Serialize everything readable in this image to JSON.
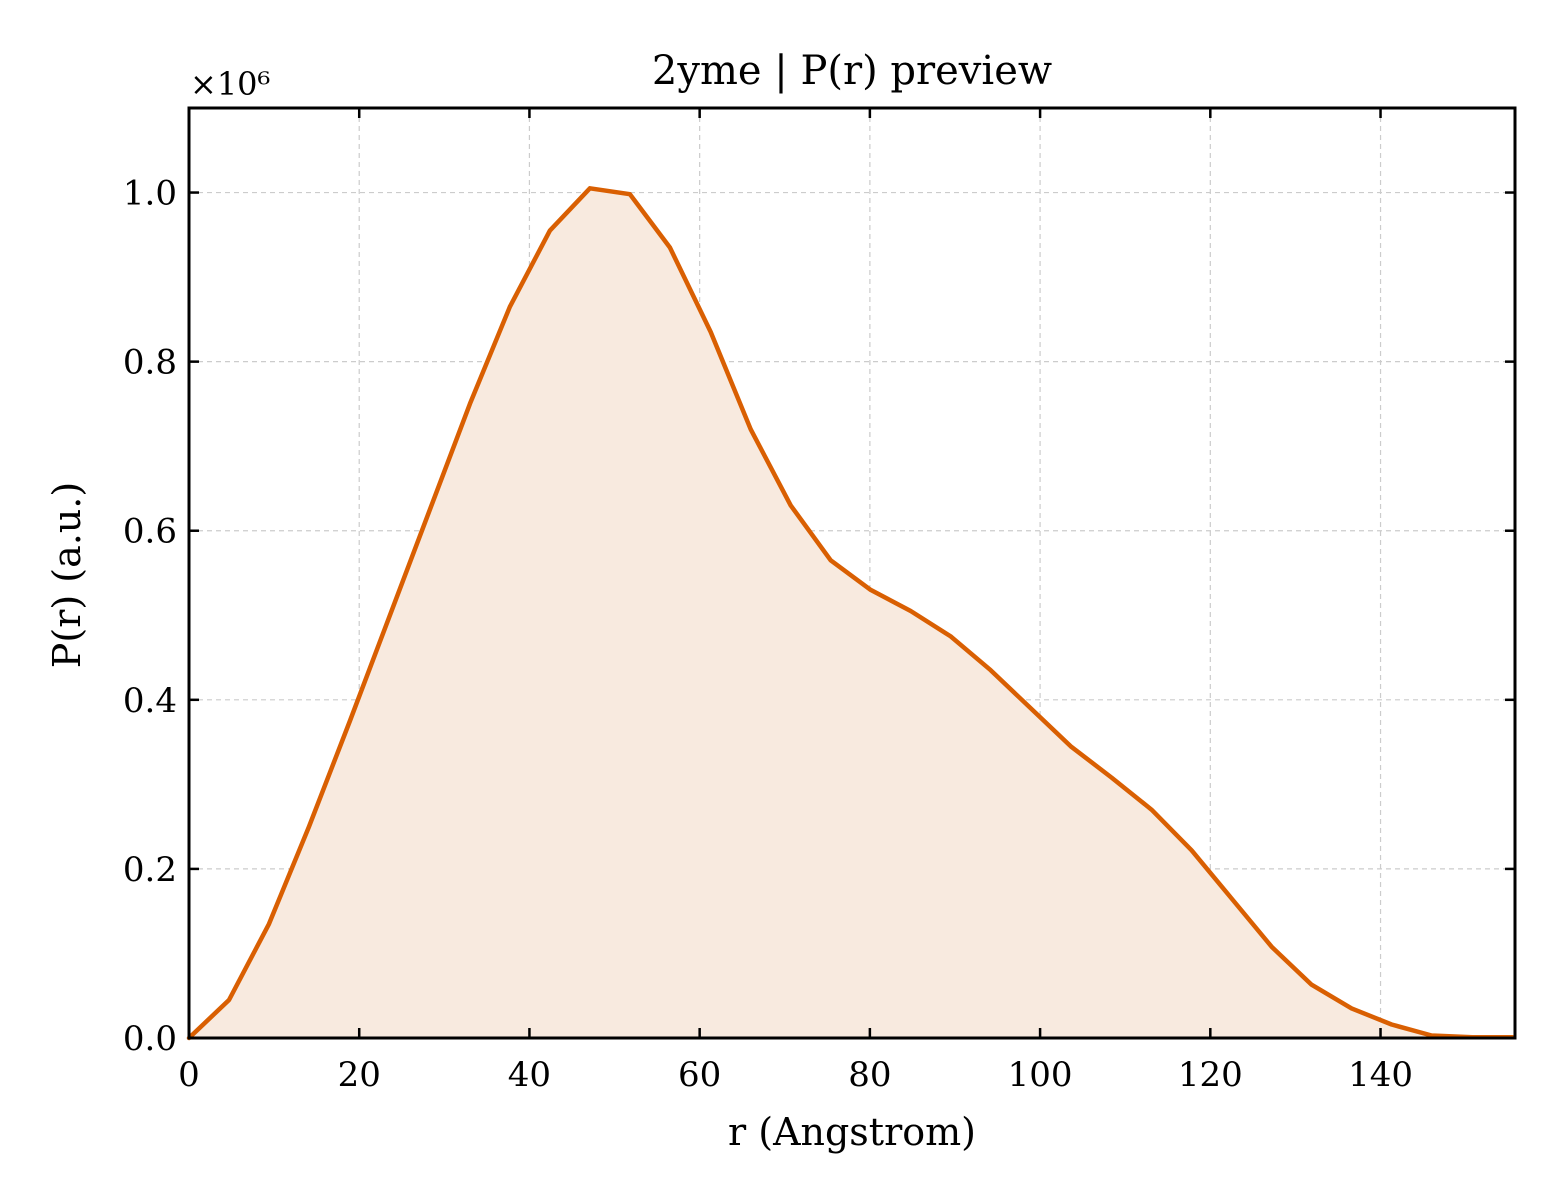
{
  "chart_data": {
    "type": "area",
    "title": "2yme | P(r) preview",
    "xlabel": "r (Angstrom)",
    "ylabel": "P(r) (a.u.)",
    "y_offset_label": "×10⁶",
    "xlim": [
      0,
      155.8
    ],
    "ylim": [
      0,
      1.1
    ],
    "x_ticks": [
      0,
      20,
      40,
      60,
      80,
      100,
      120,
      140
    ],
    "x_tick_labels": [
      "0",
      "20",
      "40",
      "60",
      "80",
      "100",
      "120",
      "140"
    ],
    "y_ticks": [
      0,
      0.2,
      0.4,
      0.6,
      0.8,
      1.0
    ],
    "y_tick_labels": [
      "0.0",
      "0.2",
      "0.4",
      "0.6",
      "0.8",
      "1.0"
    ],
    "grid": true,
    "line_color": "#d95f02",
    "fill_color": "#f8eadf",
    "x": [
      0,
      4.7,
      9.4,
      14.1,
      18.9,
      23.6,
      28.3,
      33.0,
      37.7,
      42.4,
      47.1,
      51.8,
      56.5,
      61.3,
      66.0,
      70.7,
      75.4,
      80.1,
      84.8,
      89.5,
      94.2,
      98.9,
      103.6,
      108.4,
      113.1,
      117.8,
      122.5,
      127.2,
      131.9,
      136.6,
      141.3,
      146.0,
      150.8,
      155.5
    ],
    "y": [
      0.0,
      0.045,
      0.135,
      0.25,
      0.375,
      0.5,
      0.625,
      0.75,
      0.865,
      0.955,
      1.005,
      0.998,
      0.935,
      0.835,
      0.72,
      0.63,
      0.565,
      0.53,
      0.505,
      0.475,
      0.435,
      0.39,
      0.345,
      0.308,
      0.27,
      0.222,
      0.165,
      0.108,
      0.063,
      0.035,
      0.016,
      0.003,
      0.001,
      0.001
    ]
  }
}
